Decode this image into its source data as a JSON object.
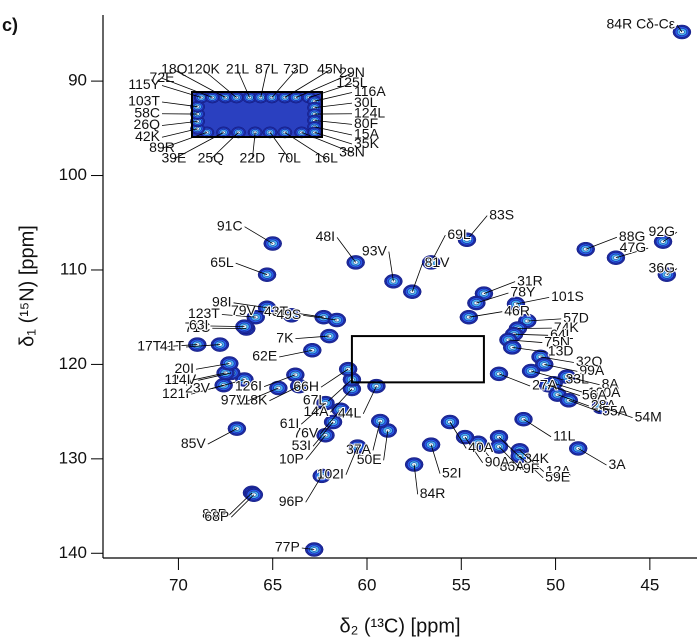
{
  "chart_data": {
    "type": "scatter",
    "panel_label": "c)",
    "x_label": "δ₂ (¹³C) [ppm]",
    "y_label": "δ₁ (¹⁵N) [ppm]",
    "color": "#2a5ae8",
    "xlim": [
      74,
      42.5
    ],
    "xticks": [
      70,
      65,
      60,
      55,
      50,
      45
    ],
    "ylim": [
      83,
      140.5
    ],
    "yticks": [
      90,
      100,
      110,
      120,
      130,
      140
    ],
    "peak_labels": [
      "84R Cδ-Cε",
      "88G",
      "47G",
      "92G",
      "36G",
      "83S",
      "48I",
      "91C",
      "93V",
      "69L",
      "81V",
      "31R",
      "78Y",
      "101S",
      "46R",
      "57D",
      "74K",
      "64L",
      "75N",
      "13D",
      "32Q",
      "99A",
      "33L",
      "8A",
      "100A",
      "27A",
      "56A",
      "28A",
      "55A",
      "54M",
      "11L",
      "34K",
      "3A",
      "12A",
      "59E",
      "86A",
      "9F",
      "90A",
      "40A",
      "52I",
      "84R",
      "50E",
      "37A",
      "102I",
      "53I",
      "76V",
      "14A",
      "44L",
      "67L",
      "61I",
      "10P",
      "96P",
      "77P",
      "82P",
      "68P",
      "85V",
      "121I",
      "23V",
      "24V",
      "114I",
      "20I",
      "17T",
      "41T",
      "71C",
      "123T",
      "79V",
      "43T",
      "63I",
      "98I",
      "65L",
      "49S",
      "7K",
      "62E",
      "66H",
      "126I",
      "118K",
      "97V"
    ],
    "x": [
      43.3,
      48.4,
      46.8,
      44.3,
      44.1,
      54.7,
      60.6,
      65.0,
      58.6,
      56.6,
      57.6,
      53.8,
      54.2,
      52.1,
      54.6,
      51.5,
      52.0,
      52.2,
      52.5,
      52.3,
      50.8,
      50.6,
      51.3,
      49.4,
      50.1,
      53.0,
      50.4,
      49.9,
      49.3,
      47.6,
      51.7,
      53.0,
      48.8,
      51.9,
      51.9,
      54.1,
      53.0,
      54.8,
      55.6,
      56.6,
      57.5,
      58.9,
      59.3,
      60.5,
      61.8,
      61.4,
      60.8,
      59.5,
      60.8,
      62.2,
      62.2,
      62.4,
      62.8,
      66.1,
      66.0,
      66.9,
      67.6,
      66.5,
      67.2,
      67.5,
      67.3,
      69.0,
      67.8,
      66.4,
      65.9,
      64.0,
      62.3,
      66.5,
      65.3,
      65.3,
      61.6,
      62.0,
      62.9,
      61.0,
      63.8,
      63.6,
      64.7
    ],
    "y": [
      84.8,
      107.8,
      108.7,
      107.0,
      110.5,
      106.8,
      109.2,
      107.2,
      111.2,
      109.2,
      112.3,
      112.5,
      113.5,
      113.6,
      115.0,
      115.4,
      116.2,
      116.8,
      117.4,
      118.2,
      119.2,
      120.0,
      120.7,
      121.3,
      122.0,
      121.0,
      122.2,
      123.2,
      123.8,
      124.5,
      125.8,
      127.7,
      128.9,
      129.1,
      129.7,
      128.3,
      128.7,
      127.7,
      126.1,
      128.5,
      130.6,
      127.0,
      126.0,
      128.7,
      126.1,
      124.8,
      122.6,
      122.3,
      121.6,
      124.1,
      127.5,
      131.8,
      139.6,
      133.6,
      133.8,
      126.8,
      122.2,
      121.6,
      120.9,
      120.9,
      119.9,
      117.9,
      117.9,
      116.2,
      115.0,
      114.8,
      115.0,
      116.0,
      114.0,
      110.5,
      115.3,
      117.0,
      118.5,
      120.5,
      121.1,
      122.3,
      122.5
    ],
    "inset": {
      "xlim": [
        60.8,
        53.8
      ],
      "ylim": [
        117.0,
        121.9
      ],
      "peak_labels": [
        "115Y",
        "72E",
        "18Q",
        "120K",
        "21L",
        "87L",
        "73D",
        "45N",
        "29N",
        "125L",
        "116A",
        "30L",
        "124L",
        "80F",
        "15A",
        "35K",
        "38N",
        "16L",
        "70L",
        "22D",
        "25Q",
        "39E",
        "89R",
        "42K",
        "26Q",
        "58C",
        "103T"
      ],
      "x": [
        60.3,
        59.7,
        59.0,
        58.4,
        57.7,
        57.1,
        56.5,
        55.8,
        55.2,
        54.5,
        54.2,
        54.2,
        54.2,
        54.2,
        54.2,
        54.2,
        54.9,
        55.8,
        56.6,
        57.4,
        58.3,
        59.1,
        60.0,
        60.5,
        60.5,
        60.5,
        60.5
      ],
      "y": [
        117.6,
        117.6,
        117.6,
        117.6,
        117.6,
        117.6,
        117.6,
        117.6,
        117.6,
        117.6,
        118.0,
        118.7,
        119.4,
        120.1,
        120.8,
        121.4,
        121.4,
        121.4,
        121.4,
        121.4,
        121.4,
        121.4,
        121.4,
        121.0,
        120.2,
        119.4,
        118.6
      ]
    }
  }
}
